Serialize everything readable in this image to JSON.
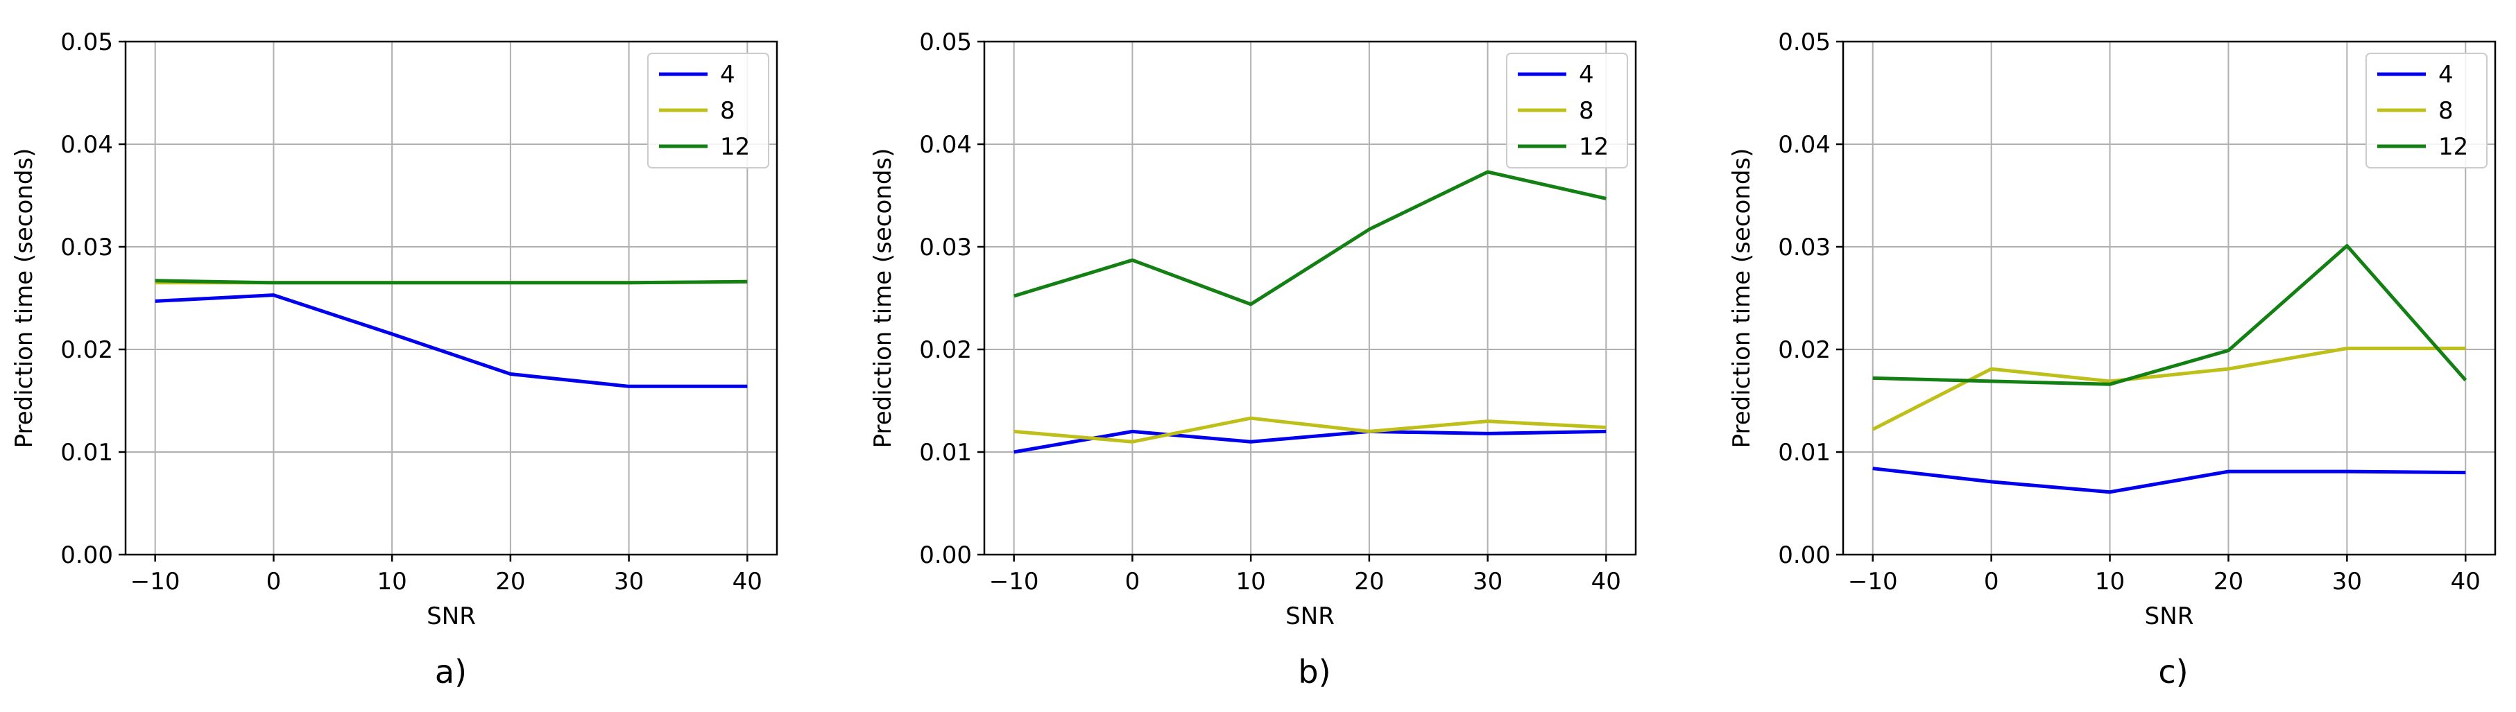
{
  "chart_data": [
    {
      "type": "line",
      "caption": "a)",
      "xlabel": "SNR",
      "ylabel": "Prediction time (seconds)",
      "xlim": [
        -12.5,
        42.5
      ],
      "ylim": [
        0,
        0.05
      ],
      "x_ticks": [
        -10,
        0,
        10,
        20,
        30,
        40
      ],
      "x_tick_labels": [
        "−10",
        "0",
        "10",
        "20",
        "30",
        "40"
      ],
      "y_ticks": [
        0,
        0.01,
        0.02,
        0.03,
        0.04,
        0.05
      ],
      "y_tick_labels": [
        "0.00",
        "0.01",
        "0.02",
        "0.03",
        "0.04",
        "0.05"
      ],
      "grid": true,
      "legend_position": "top-right",
      "x": [
        -10,
        0,
        10,
        20,
        30,
        40
      ],
      "series": [
        {
          "name": "4",
          "color": "#0000ee",
          "values": [
            0.0247,
            0.0253,
            0.0215,
            0.0176,
            0.0164,
            0.0164
          ]
        },
        {
          "name": "8",
          "color": "#bfbf1a",
          "values": [
            0.0265,
            0.0265,
            0.0265,
            0.0265,
            0.0265,
            0.0266
          ]
        },
        {
          "name": "12",
          "color": "#138013",
          "values": [
            0.0267,
            0.0265,
            0.0265,
            0.0265,
            0.0265,
            0.0266
          ]
        }
      ]
    },
    {
      "type": "line",
      "caption": "b)",
      "xlabel": "SNR",
      "ylabel": "Prediction time (seconds)",
      "xlim": [
        -12.5,
        42.5
      ],
      "ylim": [
        0,
        0.05
      ],
      "x_ticks": [
        -10,
        0,
        10,
        20,
        30,
        40
      ],
      "x_tick_labels": [
        "−10",
        "0",
        "10",
        "20",
        "30",
        "40"
      ],
      "y_ticks": [
        0,
        0.01,
        0.02,
        0.03,
        0.04,
        0.05
      ],
      "y_tick_labels": [
        "0.00",
        "0.01",
        "0.02",
        "0.03",
        "0.04",
        "0.05"
      ],
      "grid": true,
      "legend_position": "top-right",
      "x": [
        -10,
        0,
        10,
        20,
        30,
        40
      ],
      "series": [
        {
          "name": "4",
          "color": "#0000ee",
          "values": [
            0.01,
            0.012,
            0.011,
            0.012,
            0.0118,
            0.012
          ]
        },
        {
          "name": "8",
          "color": "#bfbf1a",
          "values": [
            0.012,
            0.011,
            0.0133,
            0.012,
            0.013,
            0.0124
          ]
        },
        {
          "name": "12",
          "color": "#138013",
          "values": [
            0.0252,
            0.0287,
            0.0244,
            0.0317,
            0.0373,
            0.0347
          ]
        }
      ]
    },
    {
      "type": "line",
      "caption": "c)",
      "xlabel": "SNR",
      "ylabel": "Prediction time (seconds)",
      "xlim": [
        -12.5,
        42.5
      ],
      "ylim": [
        0,
        0.05
      ],
      "x_ticks": [
        -10,
        0,
        10,
        20,
        30,
        40
      ],
      "x_tick_labels": [
        "−10",
        "0",
        "10",
        "20",
        "30",
        "40"
      ],
      "y_ticks": [
        0,
        0.01,
        0.02,
        0.03,
        0.04,
        0.05
      ],
      "y_tick_labels": [
        "0.00",
        "0.01",
        "0.02",
        "0.03",
        "0.04",
        "0.05"
      ],
      "grid": true,
      "legend_position": "top-right",
      "x": [
        -10,
        0,
        10,
        20,
        30,
        40
      ],
      "series": [
        {
          "name": "4",
          "color": "#0000ee",
          "values": [
            0.0084,
            0.0071,
            0.0061,
            0.0081,
            0.0081,
            0.008
          ]
        },
        {
          "name": "8",
          "color": "#bfbf1a",
          "values": [
            0.0122,
            0.0181,
            0.0169,
            0.0181,
            0.0201,
            0.0201
          ]
        },
        {
          "name": "12",
          "color": "#138013",
          "values": [
            0.0172,
            0.0169,
            0.0166,
            0.0199,
            0.0301,
            0.017
          ]
        }
      ]
    }
  ]
}
